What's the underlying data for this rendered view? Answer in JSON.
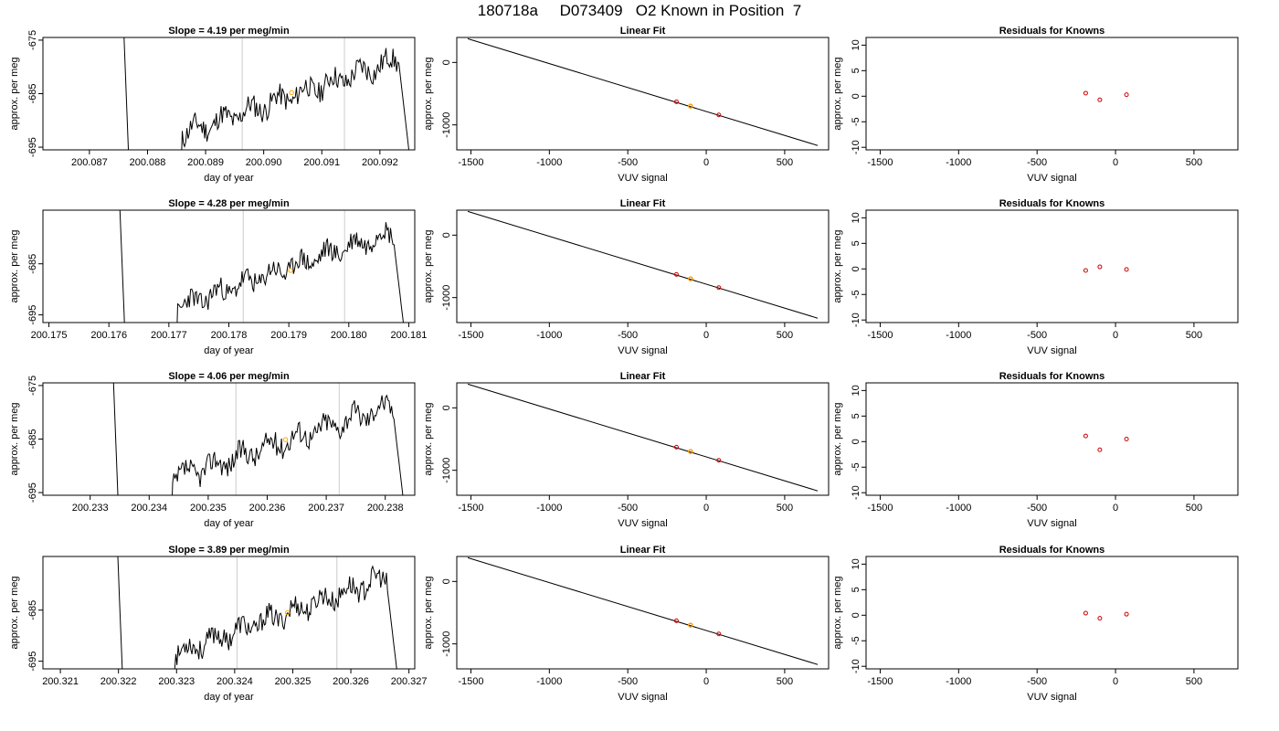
{
  "figure_title": "180718a     D073409   O2 Known in Position  7",
  "chart_data": [
    {
      "type": "line",
      "row": 0,
      "col": 0,
      "title": "Slope =  4.19  per meg/min",
      "xlabel": "day of year",
      "ylabel": "approx. per meg",
      "xlim": [
        200.0862,
        200.0926
      ],
      "ylim": [
        -695.5,
        -674.5
      ],
      "xticks": [
        "200.087",
        "200.088",
        "200.089",
        "200.090",
        "200.091",
        "200.092"
      ],
      "yticks": [
        "-675",
        "-685",
        "-695"
      ],
      "vlines": [
        200.08963,
        200.09139
      ],
      "marker": [
        200.09048,
        -684.8
      ],
      "trace": {
        "start": 200.08728,
        "end": 200.09255,
        "seed": 11
      }
    },
    {
      "type": "line",
      "row": 0,
      "col": 1,
      "title": "Linear Fit",
      "xlabel": "VUV signal",
      "ylabel": "approx. per meg",
      "xlim": [
        -1590,
        780
      ],
      "ylim": [
        -1400,
        400
      ],
      "xticks": [
        "-1500",
        "-1000",
        "-500",
        "0",
        "500"
      ],
      "yticks": [
        "0",
        "-1000"
      ],
      "line": [
        [
          -1520,
          380
        ],
        [
          710,
          -1330
        ]
      ],
      "points": [
        [
          -190,
          -630
        ],
        [
          -100,
          -700
        ],
        [
          80,
          -840
        ]
      ],
      "highlight": [
        -100,
        -700
      ]
    },
    {
      "type": "scatter",
      "row": 0,
      "col": 2,
      "title": "Residuals for Knowns",
      "xlabel": "VUV signal",
      "ylabel": "approx. per meg",
      "xlim": [
        -1590,
        780
      ],
      "ylim": [
        -10.5,
        11.5
      ],
      "xticks": [
        "-1500",
        "-1000",
        "-500",
        "0",
        "500"
      ],
      "yticks": [
        "10",
        "5",
        "0",
        "-5",
        "-10"
      ],
      "points": [
        [
          -190,
          0.6
        ],
        [
          -100,
          -0.7
        ],
        [
          70,
          0.3
        ]
      ]
    },
    {
      "type": "line",
      "row": 1,
      "col": 0,
      "title": "Slope =  4.28  per meg/min",
      "xlabel": "day of year",
      "ylabel": "approx. per meg",
      "xlim": [
        200.1749,
        200.1811
      ],
      "ylim": [
        -696.5,
        -674.5
      ],
      "xticks": [
        "200.175",
        "200.176",
        "200.177",
        "200.178",
        "200.179",
        "200.180",
        "200.181"
      ],
      "yticks": [
        "-685",
        "-695"
      ],
      "vlines": [
        200.17824,
        200.17993
      ],
      "marker": [
        200.17903,
        -686.3
      ],
      "trace": {
        "start": 200.17588,
        "end": 200.18095,
        "seed": 23
      }
    },
    {
      "type": "line",
      "row": 1,
      "col": 1,
      "title": "Linear Fit",
      "xlabel": "VUV signal",
      "ylabel": "approx. per meg",
      "xlim": [
        -1590,
        780
      ],
      "ylim": [
        -1400,
        400
      ],
      "xticks": [
        "-1500",
        "-1000",
        "-500",
        "0",
        "500"
      ],
      "yticks": [
        "0",
        "-1000"
      ],
      "line": [
        [
          -1520,
          380
        ],
        [
          710,
          -1330
        ]
      ],
      "points": [
        [
          -190,
          -630
        ],
        [
          -100,
          -700
        ],
        [
          80,
          -840
        ]
      ],
      "highlight": [
        -100,
        -700
      ]
    },
    {
      "type": "scatter",
      "row": 1,
      "col": 2,
      "title": "Residuals for Knowns",
      "xlabel": "VUV signal",
      "ylabel": "approx. per meg",
      "xlim": [
        -1590,
        780
      ],
      "ylim": [
        -10.5,
        11.5
      ],
      "xticks": [
        "-1500",
        "-1000",
        "-500",
        "0",
        "500"
      ],
      "yticks": [
        "10",
        "5",
        "0",
        "-5",
        "-10"
      ],
      "points": [
        [
          -190,
          -0.3
        ],
        [
          -100,
          0.4
        ],
        [
          70,
          -0.1
        ]
      ]
    },
    {
      "type": "line",
      "row": 2,
      "col": 0,
      "title": "Slope =  4.06  per meg/min",
      "xlabel": "day of year",
      "ylabel": "approx. per meg",
      "xlim": [
        200.2322,
        200.2385
      ],
      "ylim": [
        -695.5,
        -674.5
      ],
      "xticks": [
        "200.233",
        "200.234",
        "200.235",
        "200.236",
        "200.237",
        "200.238"
      ],
      "yticks": [
        "-675",
        "-685",
        "-695"
      ],
      "vlines": [
        200.23547,
        200.23722
      ],
      "marker": [
        200.23631,
        -685.1
      ],
      "trace": {
        "start": 200.23308,
        "end": 200.23835,
        "seed": 37
      }
    },
    {
      "type": "line",
      "row": 2,
      "col": 1,
      "title": "Linear Fit",
      "xlabel": "VUV signal",
      "ylabel": "approx. per meg",
      "xlim": [
        -1590,
        780
      ],
      "ylim": [
        -1400,
        400
      ],
      "xticks": [
        "-1500",
        "-1000",
        "-500",
        "0",
        "500"
      ],
      "yticks": [
        "0",
        "-1000"
      ],
      "line": [
        [
          -1520,
          380
        ],
        [
          710,
          -1330
        ]
      ],
      "points": [
        [
          -190,
          -630
        ],
        [
          -100,
          -700
        ],
        [
          80,
          -840
        ]
      ],
      "highlight": [
        -100,
        -700
      ]
    },
    {
      "type": "scatter",
      "row": 2,
      "col": 2,
      "title": "Residuals for Knowns",
      "xlabel": "VUV signal",
      "ylabel": "approx. per meg",
      "xlim": [
        -1590,
        780
      ],
      "ylim": [
        -10.5,
        11.5
      ],
      "xticks": [
        "-1500",
        "-1000",
        "-500",
        "0",
        "500"
      ],
      "yticks": [
        "10",
        "5",
        "0",
        "-5",
        "-10"
      ],
      "points": [
        [
          -190,
          1.1
        ],
        [
          -100,
          -1.6
        ],
        [
          70,
          0.5
        ]
      ]
    },
    {
      "type": "line",
      "row": 3,
      "col": 0,
      "title": "Slope =  3.89  per meg/min",
      "xlabel": "day of year",
      "ylabel": "approx. per meg",
      "xlim": [
        200.3207,
        200.3271
      ],
      "ylim": [
        -696.5,
        -674.5
      ],
      "xticks": [
        "200.321",
        "200.322",
        "200.323",
        "200.324",
        "200.325",
        "200.326",
        "200.327"
      ],
      "yticks": [
        "-685",
        "-695"
      ],
      "vlines": [
        200.32404,
        200.32576
      ],
      "marker": [
        200.32491,
        -685.5
      ],
      "trace": {
        "start": 200.32168,
        "end": 200.32683,
        "seed": 53
      }
    },
    {
      "type": "line",
      "row": 3,
      "col": 1,
      "title": "Linear Fit",
      "xlabel": "VUV signal",
      "ylabel": "approx. per meg",
      "xlim": [
        -1590,
        780
      ],
      "ylim": [
        -1400,
        400
      ],
      "xticks": [
        "-1500",
        "-1000",
        "-500",
        "0",
        "500"
      ],
      "yticks": [
        "0",
        "-1000"
      ],
      "line": [
        [
          -1520,
          380
        ],
        [
          710,
          -1330
        ]
      ],
      "points": [
        [
          -190,
          -630
        ],
        [
          -100,
          -700
        ],
        [
          80,
          -840
        ]
      ],
      "highlight": [
        -100,
        -700
      ]
    },
    {
      "type": "scatter",
      "row": 3,
      "col": 2,
      "title": "Residuals for Knowns",
      "xlabel": "VUV signal",
      "ylabel": "approx. per meg",
      "xlim": [
        -1590,
        780
      ],
      "ylim": [
        -10.5,
        11.5
      ],
      "xticks": [
        "-1500",
        "-1000",
        "-500",
        "0",
        "500"
      ],
      "yticks": [
        "10",
        "5",
        "0",
        "-5",
        "-10"
      ],
      "points": [
        [
          -190,
          0.4
        ],
        [
          -100,
          -0.6
        ],
        [
          70,
          0.2
        ]
      ]
    }
  ],
  "colors": {
    "trace": "#000000",
    "vline": "#cccccc",
    "marker": "#ffa500",
    "point": "#cc0000"
  }
}
